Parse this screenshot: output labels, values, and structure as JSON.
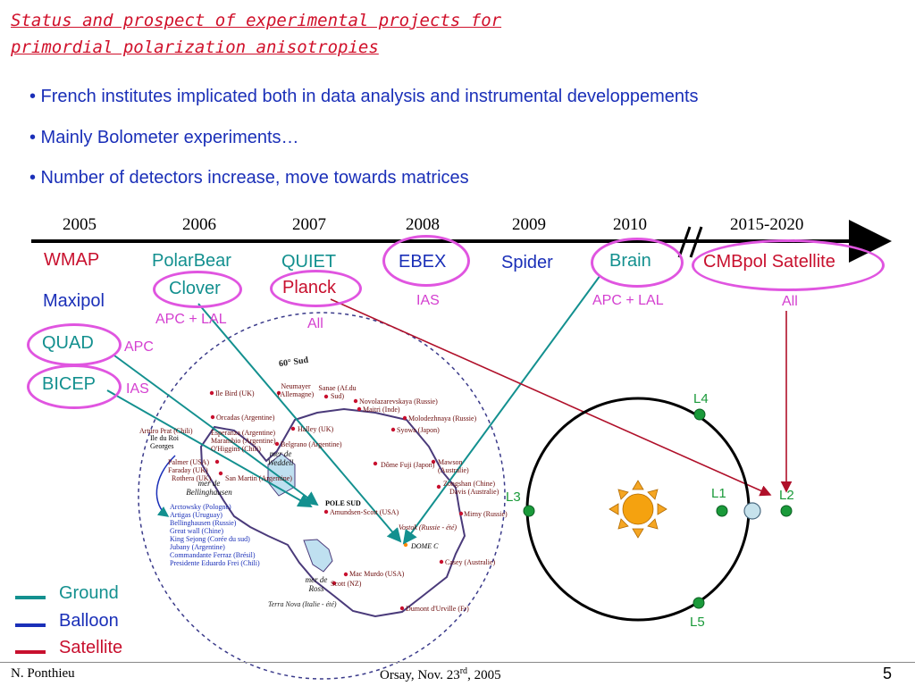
{
  "title": {
    "line1": "Status and prospect of experimental projects for",
    "line2": "primordial polarization anisotropies"
  },
  "bullets": [
    "• French institutes implicated both in data analysis and instrumental developpements",
    "• Mainly Bolometer experiments…",
    "• Number of detectors increase, move towards matrices"
  ],
  "timeline": {
    "years": [
      "2005",
      "2006",
      "2007",
      "2008",
      "2009",
      "2010",
      "2015-2020"
    ],
    "break_mark": "//"
  },
  "experiments": {
    "wmap": "WMAP",
    "maxipol": "Maxipol",
    "quad": "QUAD",
    "quad_inst": "APC",
    "bicep": "BICEP",
    "bicep_inst": "IAS",
    "polarbear": "PolarBear",
    "clover": "Clover",
    "clover_inst": "APC + LAL",
    "quiet": "QUIET",
    "planck": "Planck",
    "planck_inst": "All",
    "ebex": "EBEX",
    "ebex_inst": "IAS",
    "spider": "Spider",
    "brain": "Brain",
    "brain_inst": "APC + LAL",
    "cmbpol": "CMBpol Satellite",
    "cmbpol_inst": "All"
  },
  "orbit": {
    "l1": "L1",
    "l2": "L2",
    "l3": "L3",
    "l4": "L4",
    "l5": "L5"
  },
  "map": {
    "lat_label": "60° Sud",
    "sea_weddell": "mer de Weddell",
    "sea_bellingshausen": "mer de Bellinghausen",
    "sea_ross": "mer de Ross",
    "ile_du_roi": "Ile du Roi Georges",
    "pole_sud": "POLE SUD",
    "dome_c": "DOME C",
    "stations": [
      "Ile Bird (UK)",
      "Neumayer (Allemagne)",
      "Sanae (Af.du Sud)",
      "Novolazarevskaya (Russie)",
      "Maitri (Inde)",
      "Orcadas (Argentine)",
      "Molodezhnaya (Russie)",
      "Arturo Prat (Chili)",
      "Esperanza (Argentine)",
      "Marambio (Argentine)",
      "O'Higgins (Chili)",
      "Halley (UK)",
      "Syowa (Japon)",
      "Belgrano (Argentine)",
      "Palmer (USA)",
      "Faraday (UK)",
      "Rothera (UK)",
      "San Martin (Argentine)",
      "Dôme Fuji (Japon)",
      "Mawson (Australie)",
      "Zongshan (Chine)",
      "Davis (Australie)",
      "Amundsen-Scott (USA)",
      "Mirny (Russie)",
      "Vostok (Russie - été)",
      "Arctowsky (Pologne)",
      "Artigas (Uruguay)",
      "Bellinghausen (Russie)",
      "Great wall (Chine)",
      "King Sejong (Corée du sud)",
      "Jubany (Argentine)",
      "Commandante Ferraz (Brésil)",
      "Presidente Eduardo Frei (Chili)",
      "Casey (Australie)",
      "Mac Murdo (USA)",
      "Scott (NZ)",
      "Terra Nova (Italie - été)",
      "Dumont d'Urville (Fr)"
    ]
  },
  "legend": {
    "ground": "Ground",
    "balloon": "Balloon",
    "satellite": "Satellite",
    "ground_color": "#13908f",
    "balloon_color": "#1a2fb8",
    "satellite_color": "#c8102e"
  },
  "footer": {
    "author": "N. Ponthieu",
    "place_date_pre": "Orsay, Nov. 23",
    "place_date_sup": "rd",
    "place_date_post": ", 2005",
    "page": "5"
  }
}
